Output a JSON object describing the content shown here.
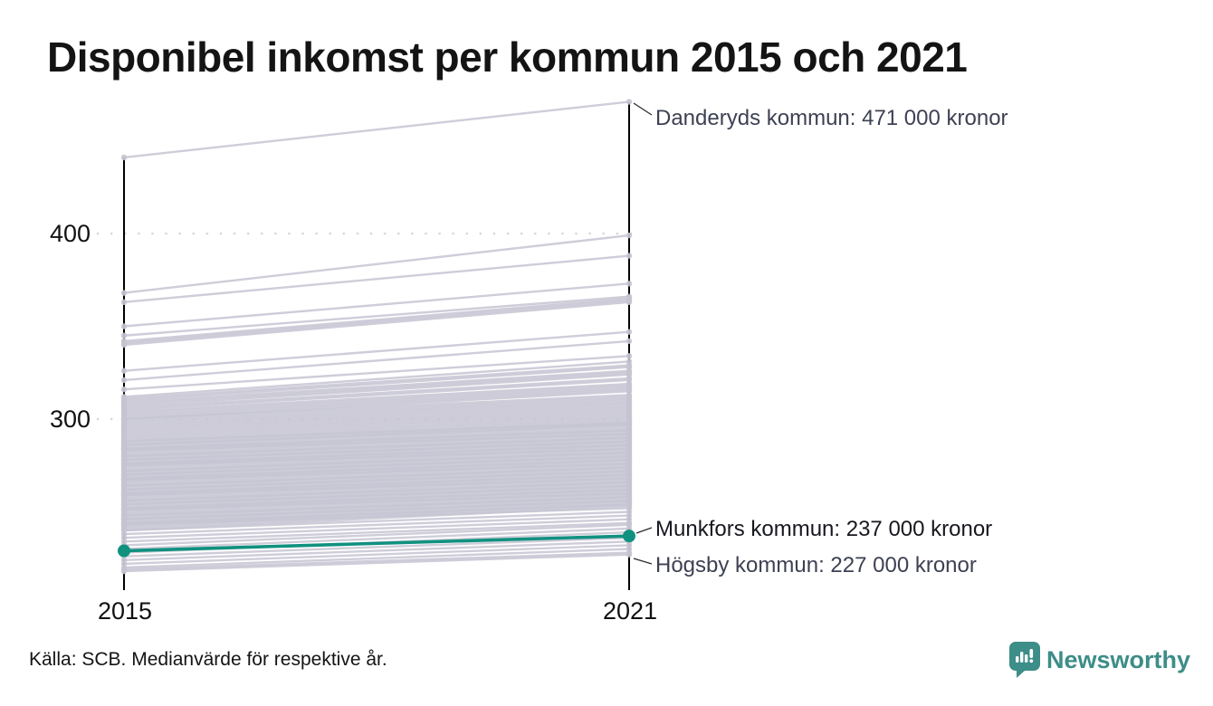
{
  "title": "Disponibel inkomst per kommun 2015 och 2021",
  "source_note": "Källa: SCB. Medianvärde för respektive år.",
  "logo": {
    "name": "Newsworthy",
    "icon": "speech-bubble-bar-chart-icon"
  },
  "annotations": [
    {
      "id": "danderyd",
      "label": "Danderyds kommun: 471 000 kronor"
    },
    {
      "id": "munkfors",
      "label": "Munkfors kommun: 237 000 kronor"
    },
    {
      "id": "hogsby",
      "label": "Högsby kommun: 227 000 kronor"
    }
  ],
  "colors": {
    "line_gray": "#c6c4d2",
    "highlight_teal": "#109180",
    "axis_black": "#000000",
    "grid_dot": "#d8d7dc",
    "annotation_slate": "#3e4153",
    "logo_teal": "#3d8d88"
  },
  "chart_data": {
    "type": "line",
    "variant": "slope-chart",
    "title": "Disponibel inkomst per kommun 2015 och 2021",
    "x_categories": [
      "2015",
      "2021"
    ],
    "x_tick_labels": {
      "left": "2015",
      "right": "2021"
    },
    "y_tick_labels": {
      "t400": "400",
      "t300": "300"
    },
    "yticks": [
      300,
      400
    ],
    "ylim": [
      210,
      480
    ],
    "unit_thousand_kronor": true,
    "grid": "dotted-horizontal",
    "highlight": {
      "name": "Munkfors kommun",
      "values": [
        229,
        237
      ],
      "color": "#109180"
    },
    "annotated_points": [
      {
        "name": "Danderyds kommun",
        "year": "2021",
        "value": 471
      },
      {
        "name": "Munkfors kommun",
        "year": "2021",
        "value": 237
      },
      {
        "name": "Högsby kommun",
        "year": "2021",
        "value": 227
      }
    ],
    "lines": [
      [
        441,
        471
      ],
      [
        368,
        399
      ],
      [
        363,
        388
      ],
      [
        350,
        373
      ],
      [
        345,
        366
      ],
      [
        342,
        365
      ],
      [
        341,
        364
      ],
      [
        340,
        363
      ],
      [
        326,
        347
      ],
      [
        321,
        342
      ],
      [
        316,
        334
      ],
      [
        312,
        331
      ],
      [
        311,
        329
      ],
      [
        310,
        328
      ],
      [
        309,
        326
      ],
      [
        308,
        325
      ],
      [
        307,
        324
      ],
      [
        306,
        322
      ],
      [
        305,
        321
      ],
      [
        304,
        319
      ],
      [
        303,
        318
      ],
      [
        302,
        317
      ],
      [
        301,
        316
      ],
      [
        300,
        315
      ],
      [
        300,
        313
      ],
      [
        299,
        312
      ],
      [
        298,
        311
      ],
      [
        297,
        310
      ],
      [
        296,
        309
      ],
      [
        295,
        308
      ],
      [
        294,
        307
      ],
      [
        293,
        306
      ],
      [
        292,
        305
      ],
      [
        291,
        304
      ],
      [
        290,
        303
      ],
      [
        289,
        302
      ],
      [
        288,
        301
      ],
      [
        287,
        300
      ],
      [
        286,
        299
      ],
      [
        285,
        298
      ],
      [
        284,
        297
      ],
      [
        283,
        296
      ],
      [
        282,
        295
      ],
      [
        281,
        294
      ],
      [
        280,
        293
      ],
      [
        279,
        292
      ],
      [
        278,
        291
      ],
      [
        277,
        290
      ],
      [
        276,
        289
      ],
      [
        275,
        288
      ],
      [
        274,
        287
      ],
      [
        273,
        286
      ],
      [
        272,
        285
      ],
      [
        271,
        284
      ],
      [
        270,
        283
      ],
      [
        269,
        282
      ],
      [
        268,
        281
      ],
      [
        267,
        280
      ],
      [
        266,
        279
      ],
      [
        265,
        278
      ],
      [
        264,
        277
      ],
      [
        263,
        276
      ],
      [
        262,
        275
      ],
      [
        261,
        274
      ],
      [
        260,
        273
      ],
      [
        259,
        272
      ],
      [
        258,
        271
      ],
      [
        257,
        270
      ],
      [
        256,
        269
      ],
      [
        255,
        268
      ],
      [
        254,
        267
      ],
      [
        253,
        266
      ],
      [
        252,
        265
      ],
      [
        251,
        264
      ],
      [
        250,
        263
      ],
      [
        249,
        262
      ],
      [
        248,
        261
      ],
      [
        247,
        260
      ],
      [
        246,
        259
      ],
      [
        245,
        258
      ],
      [
        244,
        257
      ],
      [
        243,
        256
      ],
      [
        242,
        255
      ],
      [
        241,
        254
      ],
      [
        240,
        253
      ],
      [
        288,
        298
      ],
      [
        284,
        294
      ],
      [
        280,
        290
      ],
      [
        276,
        286
      ],
      [
        272,
        282
      ],
      [
        268,
        278
      ],
      [
        264,
        274
      ],
      [
        260,
        270
      ],
      [
        256,
        266
      ],
      [
        252,
        262
      ],
      [
        248,
        258
      ],
      [
        244,
        254
      ],
      [
        240,
        250
      ],
      [
        286,
        297
      ],
      [
        278,
        288
      ],
      [
        270,
        280
      ],
      [
        262,
        272
      ],
      [
        254,
        264
      ],
      [
        246,
        256
      ],
      [
        283,
        292
      ],
      [
        275,
        284
      ],
      [
        267,
        276
      ],
      [
        259,
        268
      ],
      [
        251,
        260
      ],
      [
        243,
        252
      ],
      [
        238,
        248
      ],
      [
        236,
        246
      ],
      [
        234,
        244
      ],
      [
        232,
        243
      ],
      [
        230,
        241
      ],
      [
        228,
        239
      ],
      [
        226,
        236
      ],
      [
        224,
        234
      ],
      [
        222,
        232
      ],
      [
        220,
        230
      ],
      [
        219,
        228
      ],
      [
        218,
        227
      ]
    ]
  }
}
